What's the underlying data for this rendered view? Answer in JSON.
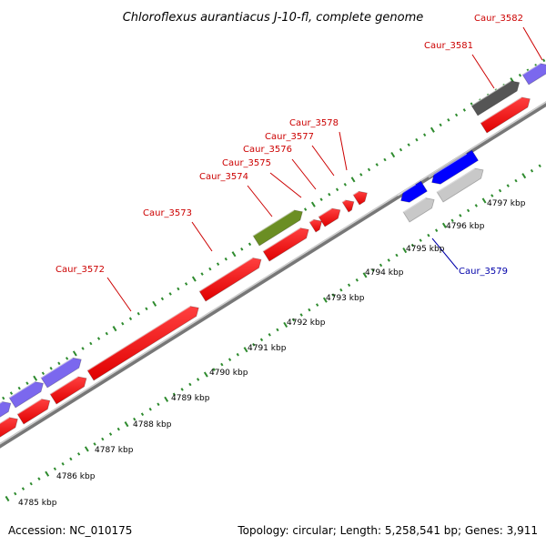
{
  "title": "Chloroflexus aurantiacus J-10-fl, complete genome",
  "footer": {
    "accession": "Accession: NC_010175",
    "topology": "Topology: circular; Length: 5,258,541 bp; Genes: 3,911"
  },
  "colors": {
    "forward_gene": "#ff0000",
    "reverse_gene": "#0000ff",
    "label_forward": "#cc0000",
    "label_reverse": "#0000aa",
    "olive_gene": "#6b8e23",
    "purple_gene": "#7b68ee",
    "gray_gene": "#c8c8c8",
    "dark_gene": "#555555",
    "tick": "#2e8b2e",
    "backbone": "#999999"
  },
  "scale_labels": [
    "4785 kbp",
    "4786 kbp",
    "4787 kbp",
    "4788 kbp",
    "4789 kbp",
    "4790 kbp",
    "4791 kbp",
    "4792 kbp",
    "4793 kbp",
    "4794 kbp",
    "4795 kbp",
    "4796 kbp",
    "4797 kbp"
  ],
  "gene_labels": [
    {
      "name": "Caur_3572",
      "strand": "forward"
    },
    {
      "name": "Caur_3573",
      "strand": "forward"
    },
    {
      "name": "Caur_3574",
      "strand": "forward"
    },
    {
      "name": "Caur_3575",
      "strand": "forward"
    },
    {
      "name": "Caur_3576",
      "strand": "forward"
    },
    {
      "name": "Caur_3577",
      "strand": "forward"
    },
    {
      "name": "Caur_3578",
      "strand": "forward"
    },
    {
      "name": "Caur_3579",
      "strand": "reverse"
    },
    {
      "name": "Caur_3581",
      "strand": "forward"
    },
    {
      "name": "Caur_3582",
      "strand": "forward"
    }
  ]
}
